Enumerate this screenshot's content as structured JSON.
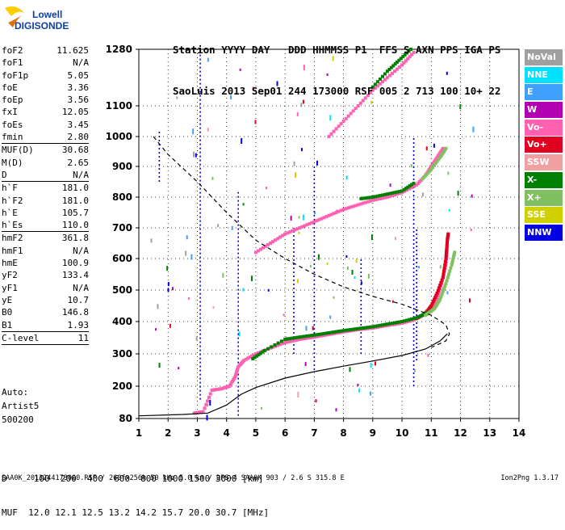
{
  "logo": {
    "line1": "Lowell",
    "line2": "DIGISONDE"
  },
  "header": {
    "columns": "Station YYYY DAY   DDD HHMMSS P1  FFS S AXN PPS IGA PS",
    "values": "SaoLuis 2013 Sep01 244 173000 RSF 005 2 713 100 10+ 22"
  },
  "params_group1": [
    {
      "label": "foF2",
      "value": "11.625"
    },
    {
      "label": "foF1",
      "value": "N/A"
    },
    {
      "label": "foF1p",
      "value": "5.05"
    },
    {
      "label": "foE",
      "value": "3.36"
    },
    {
      "label": "foEp",
      "value": "3.56"
    },
    {
      "label": "fxI",
      "value": "12.05"
    },
    {
      "label": "foEs",
      "value": "3.45"
    },
    {
      "label": "fmin",
      "value": "2.80"
    }
  ],
  "params_group2": [
    {
      "label": "MUF(D)",
      "value": "30.68"
    },
    {
      "label": "M(D)",
      "value": "2.65"
    },
    {
      "label": "D",
      "value": "N/A"
    }
  ],
  "params_group3": [
    {
      "label": "h`F",
      "value": "181.0"
    },
    {
      "label": "h`F2",
      "value": "181.0"
    },
    {
      "label": "h`E",
      "value": "105.7"
    },
    {
      "label": "h`Es",
      "value": "110.0"
    }
  ],
  "params_group4": [
    {
      "label": "hmF2",
      "value": "361.8"
    },
    {
      "label": "hmF1",
      "value": "N/A"
    },
    {
      "label": "hmE",
      "value": "100.9"
    },
    {
      "label": "yF2",
      "value": "133.4"
    },
    {
      "label": "yF1",
      "value": "N/A"
    },
    {
      "label": "yE",
      "value": "10.7"
    },
    {
      "label": "B0",
      "value": "146.8"
    },
    {
      "label": "B1",
      "value": "1.93"
    }
  ],
  "params_group5": [
    {
      "label": "C-level",
      "value": "11"
    }
  ],
  "status": {
    "line1": "Auto:",
    "line2": "Artist5",
    "line3": "500200"
  },
  "legend": [
    {
      "label": "NoVal",
      "color": "#a0a0a0"
    },
    {
      "label": "NNE",
      "color": "#00e0ff"
    },
    {
      "label": "E",
      "color": "#40a0ff"
    },
    {
      "label": "W",
      "color": "#b000b0"
    },
    {
      "label": "Vo-",
      "color": "#ff60b0"
    },
    {
      "label": "Vo+",
      "color": "#e00020"
    },
    {
      "label": "SSW",
      "color": "#f0a0a0"
    },
    {
      "label": "X-",
      "color": "#008000"
    },
    {
      "label": "X+",
      "color": "#80c060"
    },
    {
      "label": "SSE",
      "color": "#d0d000"
    },
    {
      "label": "NNW",
      "color": "#0000e0"
    }
  ],
  "footer": {
    "distance_line": "D     100  200  400  600  800 1000 1500 3000 [km]",
    "muf_line": "MUF  12.0 12.1 12.5 13.2 14.2 15.7 20.0 30.7 [MHz]",
    "file_info": "SAA0K_2013244173000.RSF / 260fx256h 50 kHz 5.0 km / DPS-4 SAA0K 903 / 2.6 S 315.8 E",
    "version": "Ion2Png 1.3.17"
  },
  "chart_data": {
    "type": "scatter",
    "xlim": [
      1,
      14
    ],
    "ylim": [
      80,
      1280
    ],
    "x_ticks": [
      "1",
      "2",
      "3",
      "4",
      "5",
      "6",
      "7",
      "8",
      "9",
      "10",
      "11",
      "12",
      "13",
      "14"
    ],
    "y_ticks": [
      "80",
      "200",
      "300",
      "400",
      "500",
      "600",
      "700",
      "800",
      "900",
      "1000",
      "1100",
      "1280"
    ],
    "series": [
      {
        "name": "Vo-",
        "color": "#ff60b0",
        "points": [
          [
            2.9,
            100
          ],
          [
            3.2,
            105
          ],
          [
            3.5,
            185
          ],
          [
            3.8,
            190
          ],
          [
            4.1,
            200
          ],
          [
            4.3,
            230
          ],
          [
            4.4,
            260
          ],
          [
            4.6,
            280
          ],
          [
            5.0,
            300
          ],
          [
            5.5,
            318
          ],
          [
            6.0,
            335
          ],
          [
            6.5,
            345
          ],
          [
            7.0,
            352
          ],
          [
            7.5,
            360
          ],
          [
            8.0,
            368
          ],
          [
            8.5,
            375
          ],
          [
            9.0,
            380
          ],
          [
            9.5,
            388
          ],
          [
            10.0,
            395
          ],
          [
            10.4,
            405
          ],
          [
            10.7,
            420
          ],
          [
            11.0,
            445
          ],
          [
            11.2,
            475
          ],
          [
            11.35,
            520
          ],
          [
            11.5,
            580
          ],
          [
            11.55,
            640
          ]
        ]
      },
      {
        "name": "Vo+",
        "color": "#e00020",
        "points": [
          [
            10.5,
            410
          ],
          [
            10.8,
            425
          ],
          [
            11.0,
            450
          ],
          [
            11.2,
            490
          ],
          [
            11.4,
            540
          ],
          [
            11.5,
            600
          ],
          [
            11.55,
            660
          ],
          [
            11.58,
            680
          ]
        ]
      },
      {
        "name": "X-",
        "color": "#008000",
        "points": [
          [
            4.9,
            285
          ],
          [
            5.3,
            310
          ],
          [
            6.0,
            345
          ],
          [
            6.5,
            352
          ],
          [
            7.0,
            358
          ],
          [
            7.5,
            365
          ],
          [
            8.0,
            372
          ],
          [
            8.5,
            378
          ],
          [
            9.0,
            384
          ],
          [
            9.5,
            392
          ],
          [
            10.0,
            400
          ],
          [
            10.5,
            412
          ],
          [
            10.9,
            430
          ]
        ]
      },
      {
        "name": "X+",
        "color": "#80c060",
        "points": [
          [
            10.8,
            420
          ],
          [
            11.1,
            440
          ],
          [
            11.3,
            470
          ],
          [
            11.5,
            520
          ],
          [
            11.7,
            580
          ],
          [
            11.8,
            620
          ]
        ]
      },
      {
        "name": "Vo- (2 hop)",
        "color": "#ff60b0",
        "points": [
          [
            5.0,
            620
          ],
          [
            5.5,
            650
          ],
          [
            6.0,
            680
          ],
          [
            6.5,
            700
          ],
          [
            7.0,
            720
          ],
          [
            7.5,
            740
          ],
          [
            8.0,
            760
          ],
          [
            8.5,
            775
          ],
          [
            9.0,
            790
          ],
          [
            9.5,
            800
          ],
          [
            10.0,
            815
          ],
          [
            10.5,
            840
          ],
          [
            10.8,
            870
          ],
          [
            11.0,
            900
          ],
          [
            11.2,
            930
          ],
          [
            11.4,
            960
          ]
        ]
      },
      {
        "name": "X- (2 hop)",
        "color": "#008000",
        "points": [
          [
            8.6,
            795
          ],
          [
            9.0,
            800
          ],
          [
            9.5,
            810
          ],
          [
            10.0,
            820
          ],
          [
            10.4,
            845
          ]
        ]
      },
      {
        "name": "X+ (2 hop)",
        "color": "#80c060",
        "points": [
          [
            10.7,
            860
          ],
          [
            11.0,
            890
          ],
          [
            11.3,
            930
          ],
          [
            11.5,
            960
          ]
        ]
      },
      {
        "name": "Vo- (3 hop)",
        "color": "#ff60b0",
        "points": [
          [
            7.5,
            1000
          ],
          [
            8.0,
            1050
          ],
          [
            8.5,
            1100
          ],
          [
            9.0,
            1150
          ],
          [
            9.5,
            1190
          ],
          [
            10.0,
            1230
          ],
          [
            10.4,
            1270
          ]
        ]
      },
      {
        "name": "X- (3 hop)",
        "color": "#008000",
        "points": [
          [
            9.0,
            1160
          ],
          [
            9.5,
            1210
          ],
          [
            9.9,
            1245
          ],
          [
            10.3,
            1280
          ]
        ]
      }
    ],
    "model_profile": {
      "style": "solid",
      "points": [
        [
          1.0,
          90
        ],
        [
          2.5,
          95
        ],
        [
          3.36,
          100
        ],
        [
          4.0,
          130
        ],
        [
          4.5,
          170
        ],
        [
          5.0,
          195
        ],
        [
          6.0,
          225
        ],
        [
          7.0,
          245
        ],
        [
          8.0,
          262
        ],
        [
          9.0,
          278
        ],
        [
          10.0,
          295
        ],
        [
          10.8,
          315
        ],
        [
          11.3,
          340
        ],
        [
          11.55,
          362
        ]
      ]
    },
    "muf_curve": {
      "style": "dashed",
      "points": [
        [
          1.5,
          1000
        ],
        [
          2.0,
          940
        ],
        [
          3.0,
          850
        ],
        [
          4.0,
          750
        ],
        [
          5.0,
          660
        ],
        [
          6.0,
          600
        ],
        [
          7.0,
          550
        ],
        [
          8.0,
          510
        ],
        [
          9.0,
          480
        ],
        [
          10.0,
          455
        ],
        [
          11.0,
          420
        ],
        [
          11.5,
          390
        ],
        [
          11.62,
          362
        ],
        [
          11.5,
          340
        ],
        [
          11.0,
          320
        ]
      ]
    }
  }
}
